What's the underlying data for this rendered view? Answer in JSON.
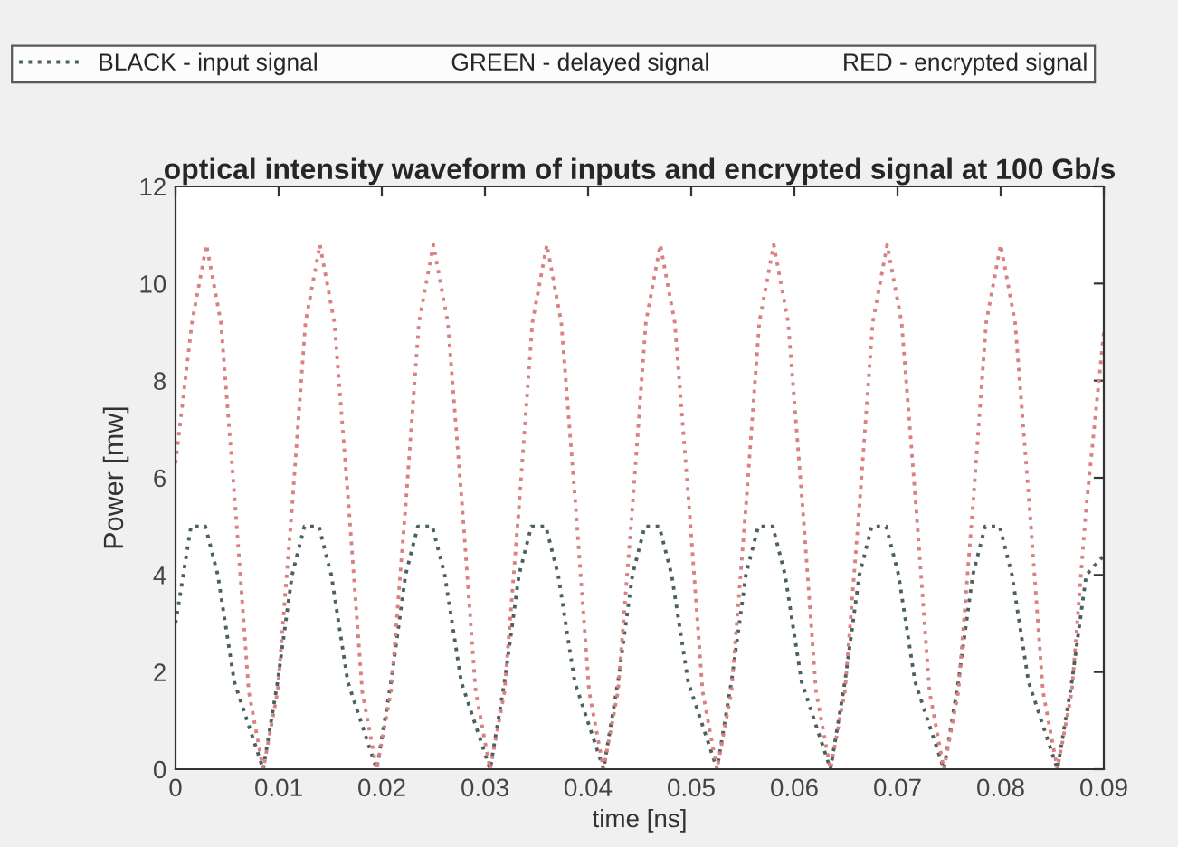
{
  "chart_data": {
    "type": "line",
    "title": "optical intensity waveform of inputs and encrypted signal at 100 Gb/s",
    "xlabel": "time [ns]",
    "ylabel": "Power [mw]",
    "xlim": [
      0,
      0.09
    ],
    "ylim": [
      0,
      12
    ],
    "xticks": [
      0,
      0.01,
      0.02,
      0.03,
      0.04,
      0.05,
      0.06,
      0.07,
      0.08,
      0.09
    ],
    "yticks": [
      0,
      2,
      4,
      6,
      8,
      10,
      12
    ],
    "grid": false,
    "legend": "top",
    "line_style": "dotted",
    "marker": "none",
    "series": [
      {
        "name": "BLACK - input signal                    GREEN - delayed signal                    RED - encrypted signal",
        "color": "#4d6060",
        "x": [
          0,
          0.0015,
          0.0029,
          0.0041,
          0.0057,
          0.0085,
          0.0099,
          0.0113,
          0.0125,
          0.0139,
          0.0151,
          0.0167,
          0.0195,
          0.0209,
          0.0223,
          0.0235,
          0.0249,
          0.0261,
          0.0277,
          0.0305,
          0.0319,
          0.0333,
          0.0345,
          0.0359,
          0.0371,
          0.0387,
          0.0415,
          0.0429,
          0.0443,
          0.0455,
          0.0469,
          0.0481,
          0.0497,
          0.0525,
          0.0539,
          0.0553,
          0.0565,
          0.0579,
          0.0591,
          0.0607,
          0.0635,
          0.0649,
          0.0663,
          0.0675,
          0.0689,
          0.0701,
          0.0717,
          0.0745,
          0.0759,
          0.0773,
          0.0785,
          0.0799,
          0.0811,
          0.0827,
          0.0855,
          0.0869,
          0.0883,
          0.09
        ],
        "values": [
          3.0,
          5.0,
          5.0,
          4.0,
          1.8,
          0,
          1.8,
          4.0,
          5.0,
          5.0,
          4.0,
          1.8,
          0,
          1.8,
          4.0,
          5.0,
          5.0,
          4.0,
          1.8,
          0,
          1.8,
          4.0,
          5.0,
          5.0,
          4.0,
          1.8,
          0,
          1.8,
          4.0,
          5.0,
          5.0,
          4.0,
          1.8,
          0,
          1.8,
          4.0,
          5.0,
          5.0,
          4.0,
          1.8,
          0,
          1.8,
          4.0,
          5.0,
          5.0,
          4.0,
          1.8,
          0,
          1.8,
          4.0,
          5.0,
          5.0,
          4.0,
          1.8,
          0,
          1.8,
          4.0,
          4.4
        ]
      },
      {
        "color": "#d98080",
        "x": [
          0,
          0.0016,
          0.003,
          0.0044,
          0.0058,
          0.0071,
          0.0085,
          0.0099,
          0.0113,
          0.0126,
          0.014,
          0.0154,
          0.0168,
          0.0181,
          0.0195,
          0.0209,
          0.0223,
          0.0236,
          0.025,
          0.0264,
          0.0278,
          0.0291,
          0.0305,
          0.0319,
          0.0333,
          0.0346,
          0.036,
          0.0374,
          0.0388,
          0.0401,
          0.0415,
          0.0429,
          0.0443,
          0.0456,
          0.047,
          0.0484,
          0.0498,
          0.0511,
          0.0525,
          0.0539,
          0.0553,
          0.0566,
          0.058,
          0.0594,
          0.0608,
          0.0621,
          0.0635,
          0.0649,
          0.0663,
          0.0676,
          0.069,
          0.0704,
          0.0718,
          0.0731,
          0.0745,
          0.0759,
          0.0773,
          0.0786,
          0.08,
          0.0814,
          0.0828,
          0.0841,
          0.0855,
          0.0869,
          0.0883,
          0.09
        ],
        "values": [
          6.3,
          9.2,
          10.8,
          9.2,
          5.4,
          1.6,
          0,
          1.6,
          5.4,
          9.2,
          10.8,
          9.2,
          5.4,
          1.6,
          0,
          1.6,
          5.4,
          9.2,
          10.8,
          9.2,
          5.4,
          1.6,
          0,
          1.6,
          5.4,
          9.2,
          10.8,
          9.2,
          5.4,
          1.6,
          0,
          1.6,
          5.4,
          9.2,
          10.8,
          9.2,
          5.4,
          1.6,
          0,
          1.6,
          5.4,
          9.2,
          10.8,
          9.2,
          5.4,
          1.6,
          0,
          1.6,
          5.4,
          9.2,
          10.8,
          9.2,
          5.4,
          1.6,
          0,
          1.6,
          5.4,
          9.2,
          10.8,
          9.2,
          5.4,
          1.6,
          0,
          1.6,
          5.4,
          9.0
        ]
      }
    ]
  }
}
